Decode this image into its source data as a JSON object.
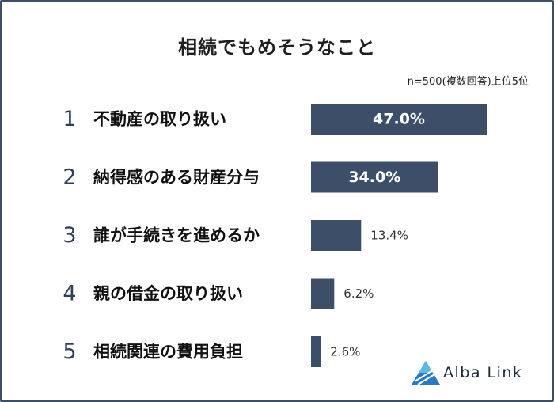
{
  "chart_data": {
    "type": "bar",
    "orientation": "horizontal",
    "title": "相続でもめそうなこと",
    "note": "n=500(複数回答)上位5位",
    "ranks": [
      "1",
      "2",
      "3",
      "4",
      "5"
    ],
    "categories": [
      "不動産の取り扱い",
      "納得感のある財産分与",
      "誰が手続きを進めるか",
      "親の借金の取り扱い",
      "相続関連の費用負担"
    ],
    "values": [
      47.0,
      34.0,
      13.4,
      6.2,
      2.6
    ],
    "value_labels": [
      "47.0%",
      "34.0%",
      "13.4%",
      "6.2%",
      "2.6%"
    ],
    "xlim": [
      0,
      47
    ],
    "grid": false,
    "legend": "none",
    "colors": {
      "bar": "#3d4f68",
      "rank": "#2f3f58",
      "border": "#3d4f68"
    }
  },
  "logo": {
    "text": "Alba Link",
    "icon": "alba-link-triangle-logo-icon"
  }
}
